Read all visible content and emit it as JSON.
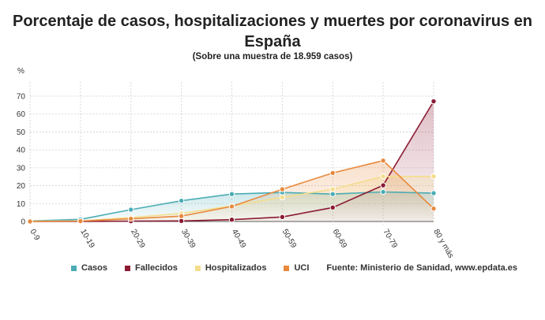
{
  "chart_data": {
    "type": "line",
    "title_line1": "Porcentaje de casos, hospitalizaciones y muertes por coronavirus en",
    "title_line2": "España",
    "subtitle": "(Sobre una muestra de 18.959 casos)",
    "ylabel": "%",
    "xlabel": "",
    "ylim": [
      0,
      70
    ],
    "yticks": [
      0,
      10,
      20,
      30,
      40,
      50,
      60,
      70
    ],
    "categories": [
      "0-9",
      "10-19",
      "20-29",
      "30-39",
      "40-49",
      "50-59",
      "60-69",
      "70-79",
      "80 y más"
    ],
    "grid": true,
    "legend_position": "bottom",
    "series": [
      {
        "name": "Casos",
        "color": "#4bacb5",
        "values": [
          0.3,
          1.2,
          6.6,
          11.6,
          15.3,
          16.2,
          15.3,
          16.5,
          15.8
        ]
      },
      {
        "name": "Fallecidos",
        "color": "#8b1a34",
        "values": [
          0,
          0,
          0.2,
          0.3,
          1.0,
          2.5,
          7.8,
          20.2,
          67.1
        ]
      },
      {
        "name": "Hospitalizados",
        "color": "#f5dd8c",
        "values": [
          0.2,
          0.3,
          2.2,
          4.5,
          8.7,
          13.5,
          18.0,
          25.2,
          25.2
        ]
      },
      {
        "name": "UCI",
        "color": "#e8893d",
        "values": [
          0,
          0.2,
          1.5,
          3.0,
          8.4,
          18.0,
          27.1,
          34.0,
          7.2
        ]
      }
    ],
    "source": "Fuente: Ministerio de Sanidad, www.epdata.es"
  }
}
